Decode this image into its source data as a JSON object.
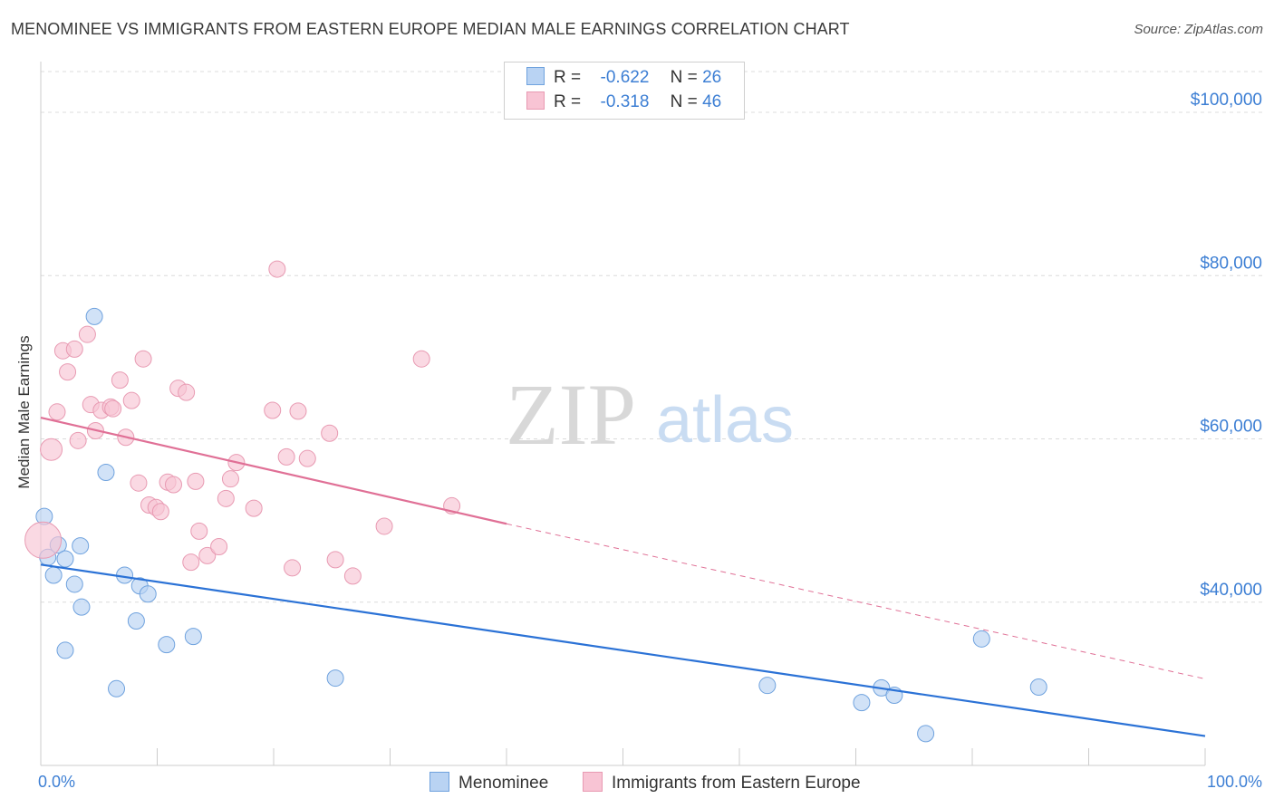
{
  "title": "MENOMINEE VS IMMIGRANTS FROM EASTERN EUROPE MEDIAN MALE EARNINGS CORRELATION CHART",
  "source": "Source: ZipAtlas.com",
  "watermark": {
    "zip": "ZIP",
    "atlas": "atlas"
  },
  "legend": {
    "rows": [
      {
        "r_label": "R =",
        "r_value": "-0.622",
        "n_label": "N =",
        "n_value": "26",
        "color": "#b9d3f3",
        "border": "#6fa2de"
      },
      {
        "r_label": "R =",
        "r_value": "-0.318",
        "n_label": "N =",
        "n_value": "46",
        "color": "#f8c4d4",
        "border": "#e89ab2"
      }
    ]
  },
  "bottom_legend": {
    "series1": "Menominee",
    "series2": "Immigrants from Eastern Europe"
  },
  "chart_data": {
    "type": "scatter",
    "title": "MENOMINEE VS IMMIGRANTS FROM EASTERN EUROPE MEDIAN MALE EARNINGS CORRELATION CHART",
    "xlabel": "",
    "ylabel": "Median Male Earnings",
    "xlim": [
      0,
      100
    ],
    "ylim": [
      20000,
      105000
    ],
    "x_ticks": [
      "0.0%",
      "100.0%"
    ],
    "y_ticks": [
      {
        "value": 40000,
        "label": "$40,000"
      },
      {
        "value": 60000,
        "label": "$60,000"
      },
      {
        "value": 80000,
        "label": "$80,000"
      },
      {
        "value": 100000,
        "label": "$100,000"
      }
    ],
    "series": [
      {
        "name": "Menominee",
        "color": "#6fa2de",
        "fill": "#b9d3f3",
        "points": [
          [
            0.3,
            50500
          ],
          [
            0.6,
            45500
          ],
          [
            1.1,
            43300
          ],
          [
            1.5,
            47000
          ],
          [
            2.1,
            45300
          ],
          [
            2.9,
            42200
          ],
          [
            3.4,
            46900
          ],
          [
            3.5,
            39400
          ],
          [
            5.6,
            55900
          ],
          [
            4.6,
            75000
          ],
          [
            2.1,
            34100
          ],
          [
            6.5,
            29400
          ],
          [
            7.2,
            43300
          ],
          [
            8.2,
            37700
          ],
          [
            8.5,
            42000
          ],
          [
            9.2,
            41000
          ],
          [
            10.8,
            34800
          ],
          [
            13.1,
            35800
          ],
          [
            25.3,
            30700
          ],
          [
            62.4,
            29800
          ],
          [
            70.5,
            27700
          ],
          [
            72.2,
            29500
          ],
          [
            73.3,
            28600
          ],
          [
            76.0,
            23900
          ],
          [
            80.8,
            35500
          ],
          [
            85.7,
            29600
          ]
        ]
      },
      {
        "name": "Immigrants from Eastern Europe",
        "color": "#e89ab2",
        "fill": "#f8c4d4",
        "points": [
          [
            0.2,
            47600
          ],
          [
            0.9,
            58700
          ],
          [
            1.4,
            63300
          ],
          [
            1.9,
            70800
          ],
          [
            2.3,
            68200
          ],
          [
            2.9,
            71000
          ],
          [
            3.2,
            59800
          ],
          [
            4.0,
            72800
          ],
          [
            4.3,
            64200
          ],
          [
            4.7,
            61000
          ],
          [
            5.2,
            63500
          ],
          [
            6.0,
            63900
          ],
          [
            6.2,
            63700
          ],
          [
            6.8,
            67200
          ],
          [
            7.3,
            60200
          ],
          [
            7.8,
            64700
          ],
          [
            8.4,
            54600
          ],
          [
            8.8,
            69800
          ],
          [
            9.3,
            51900
          ],
          [
            9.9,
            51600
          ],
          [
            10.3,
            51100
          ],
          [
            10.9,
            54700
          ],
          [
            11.4,
            54400
          ],
          [
            11.8,
            66200
          ],
          [
            12.5,
            65700
          ],
          [
            12.9,
            44900
          ],
          [
            13.3,
            54800
          ],
          [
            13.6,
            48700
          ],
          [
            14.3,
            45700
          ],
          [
            15.3,
            46800
          ],
          [
            15.9,
            52700
          ],
          [
            16.3,
            55100
          ],
          [
            16.8,
            57100
          ],
          [
            18.3,
            51500
          ],
          [
            19.9,
            63500
          ],
          [
            20.3,
            80800
          ],
          [
            21.1,
            57800
          ],
          [
            21.6,
            44200
          ],
          [
            22.1,
            63400
          ],
          [
            22.9,
            57600
          ],
          [
            24.8,
            60700
          ],
          [
            25.3,
            45200
          ],
          [
            26.8,
            43200
          ],
          [
            29.5,
            49300
          ],
          [
            32.7,
            69800
          ],
          [
            35.3,
            51800
          ]
        ]
      }
    ],
    "trend_lines": [
      {
        "series": "Menominee",
        "x": [
          0,
          100
        ],
        "y": [
          44600,
          23600
        ],
        "style": "solid"
      },
      {
        "series": "Immigrants from Eastern Europe",
        "x": [
          0,
          40
        ],
        "y": [
          62600,
          49600
        ],
        "style": "solid"
      },
      {
        "series": "Immigrants from Eastern Europe",
        "x": [
          40,
          100
        ],
        "y": [
          49600,
          30600
        ],
        "style": "dashed"
      }
    ],
    "grid": true,
    "legend_position": "top-center"
  }
}
